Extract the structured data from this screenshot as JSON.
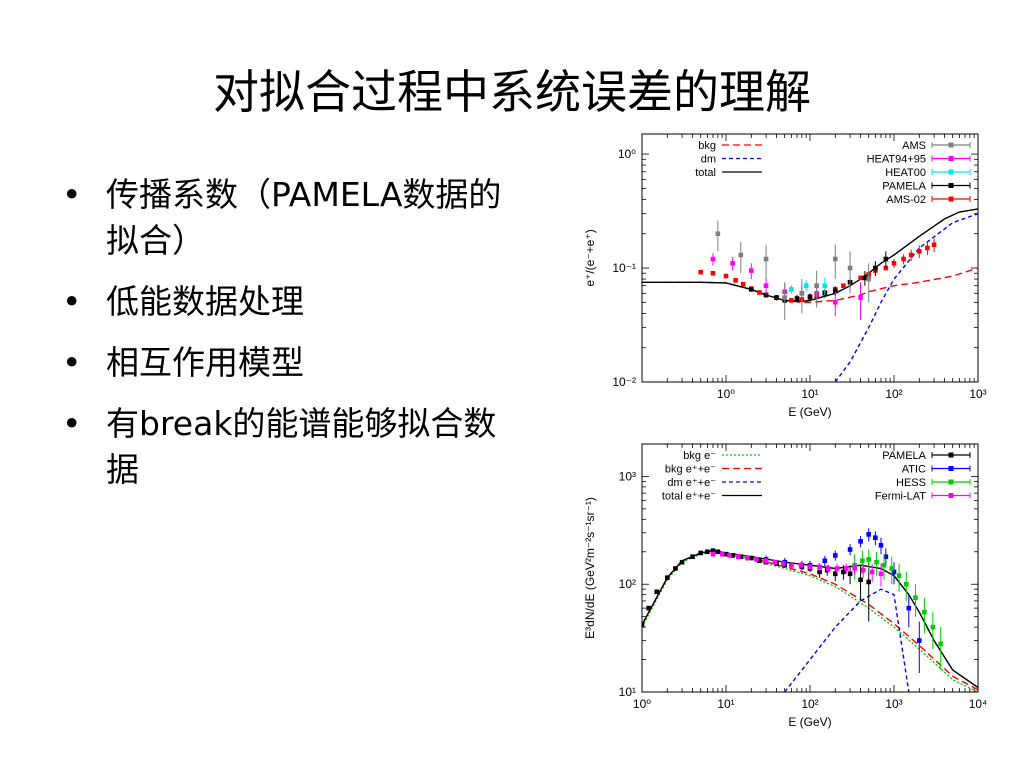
{
  "slide": {
    "title": "对拟合过程中系统误差的理解",
    "bullets": [
      "传播系数（PAMELA数据的拟合）",
      "低能数据处理",
      "相互作用模型",
      "有break的能谱能够拟合数据"
    ],
    "bullet_glyph": "•"
  },
  "chart_data": [
    {
      "type": "scatter",
      "xlabel": "E (GeV)",
      "ylabel": "e⁺/(e⁻+e⁺)",
      "xscale": "log",
      "yscale": "log",
      "xlim": [
        0.1,
        1000
      ],
      "ylim": [
        0.01,
        1.5
      ],
      "x_ticks": [
        {
          "v": 1,
          "label": "10⁰"
        },
        {
          "v": 10,
          "label": "10¹"
        },
        {
          "v": 100,
          "label": "10²"
        },
        {
          "v": 1000,
          "label": "10³"
        }
      ],
      "y_ticks": [
        {
          "v": 0.01,
          "label": "10⁻²"
        },
        {
          "v": 0.1,
          "label": "10⁻¹"
        },
        {
          "v": 1,
          "label": "10⁰"
        }
      ],
      "legend_left": [
        {
          "name": "bkg",
          "color": "#ff0000",
          "dash": "7,4"
        },
        {
          "name": "dm",
          "color": "#0000ff",
          "dash": "4,3"
        },
        {
          "name": "total",
          "color": "#000000",
          "dash": ""
        }
      ],
      "legend_right": [
        {
          "name": "AMS",
          "color": "#7f7f7f"
        },
        {
          "name": "HEAT94+95",
          "color": "#ff00ff"
        },
        {
          "name": "HEAT00",
          "color": "#00e5ee"
        },
        {
          "name": "PAMELA",
          "color": "#000000"
        },
        {
          "name": "AMS-02",
          "color": "#ff0000"
        }
      ],
      "lines": [
        {
          "name": "bkg",
          "color": "#ff0000",
          "dash": "7,4",
          "x": [
            0.1,
            0.5,
            1,
            2,
            3,
            5,
            8,
            10,
            20,
            40,
            50,
            100,
            200,
            500,
            1000
          ],
          "y": [
            0.075,
            0.075,
            0.074,
            0.065,
            0.058,
            0.052,
            0.05,
            0.05,
            0.052,
            0.058,
            0.062,
            0.07,
            0.075,
            0.085,
            0.1
          ]
        },
        {
          "name": "dm",
          "color": "#0000ff",
          "dash": "4,3",
          "x": [
            20,
            30,
            50,
            70,
            100,
            200,
            500,
            1000
          ],
          "y": [
            0.01,
            0.015,
            0.03,
            0.05,
            0.08,
            0.15,
            0.25,
            0.3
          ]
        },
        {
          "name": "total",
          "color": "#000000",
          "dash": "",
          "x": [
            0.1,
            0.5,
            1,
            2,
            3,
            5,
            8,
            10,
            20,
            30,
            40,
            50,
            70,
            100,
            200,
            400,
            600,
            1000
          ],
          "y": [
            0.075,
            0.075,
            0.074,
            0.065,
            0.058,
            0.052,
            0.051,
            0.052,
            0.06,
            0.07,
            0.08,
            0.09,
            0.11,
            0.13,
            0.19,
            0.27,
            0.31,
            0.33
          ]
        }
      ],
      "points": [
        {
          "name": "AMS-02",
          "color": "#ff0000",
          "x": [
            0.5,
            0.7,
            1,
            1.3,
            1.6,
            2,
            2.5,
            3,
            4,
            5,
            6,
            8,
            10,
            12,
            15,
            20,
            25,
            30,
            40,
            50,
            60,
            80,
            100,
            130,
            160,
            200,
            250,
            300
          ],
          "y": [
            0.092,
            0.09,
            0.085,
            0.078,
            0.072,
            0.066,
            0.061,
            0.058,
            0.055,
            0.053,
            0.052,
            0.053,
            0.055,
            0.057,
            0.061,
            0.065,
            0.07,
            0.075,
            0.082,
            0.088,
            0.095,
            0.1,
            0.11,
            0.12,
            0.13,
            0.14,
            0.15,
            0.16
          ],
          "err": [
            0,
            0,
            0,
            0,
            0,
            0,
            0,
            0,
            0,
            0,
            0,
            0,
            0,
            0,
            0,
            0,
            0,
            0,
            0,
            0,
            0,
            0,
            0.01,
            0.012,
            0.015,
            0.018,
            0.02,
            0.022
          ]
        },
        {
          "name": "PAMELA",
          "color": "#000000",
          "x": [
            2,
            3,
            4,
            5,
            7,
            10,
            15,
            20,
            30,
            45,
            60,
            80
          ],
          "y": [
            0.065,
            0.058,
            0.055,
            0.052,
            0.054,
            0.056,
            0.06,
            0.063,
            0.075,
            0.082,
            0.1,
            0.12
          ],
          "err": [
            0.003,
            0.003,
            0.003,
            0.003,
            0.004,
            0.004,
            0.005,
            0.006,
            0.008,
            0.012,
            0.015,
            0.02
          ]
        },
        {
          "name": "HEAT94+95",
          "color": "#ff00ff",
          "x": [
            0.7,
            1.2,
            2,
            3,
            5,
            8,
            12,
            20,
            40
          ],
          "y": [
            0.12,
            0.11,
            0.095,
            0.07,
            0.062,
            0.06,
            0.06,
            0.05,
            0.055
          ],
          "err": [
            0.015,
            0.015,
            0.015,
            0.012,
            0.01,
            0.01,
            0.012,
            0.012,
            0.02
          ]
        },
        {
          "name": "HEAT00",
          "color": "#00e5ee",
          "x": [
            6,
            9,
            15
          ],
          "y": [
            0.065,
            0.07,
            0.07
          ],
          "err": [
            0.006,
            0.008,
            0.012
          ]
        },
        {
          "name": "AMS",
          "color": "#7f7f7f",
          "x": [
            0.8,
            1.5,
            3,
            5,
            8,
            12,
            20,
            30,
            50
          ],
          "y": [
            0.2,
            0.13,
            0.12,
            0.055,
            0.06,
            0.07,
            0.12,
            0.1,
            0.08
          ],
          "err": [
            0.06,
            0.04,
            0.04,
            0.02,
            0.02,
            0.025,
            0.04,
            0.04,
            0.03
          ]
        }
      ]
    },
    {
      "type": "scatter",
      "xlabel": "E (GeV)",
      "ylabel": "E³dN/dE (GeV²m⁻²s⁻¹sr⁻¹)",
      "xscale": "log",
      "yscale": "log",
      "xlim": [
        1,
        10000
      ],
      "ylim": [
        10,
        2000
      ],
      "x_ticks": [
        {
          "v": 1,
          "label": "10⁰"
        },
        {
          "v": 10,
          "label": "10¹"
        },
        {
          "v": 100,
          "label": "10²"
        },
        {
          "v": 1000,
          "label": "10³"
        },
        {
          "v": 10000,
          "label": "10⁴"
        }
      ],
      "y_ticks": [
        {
          "v": 10,
          "label": "10¹"
        },
        {
          "v": 100,
          "label": "10²"
        },
        {
          "v": 1000,
          "label": "10³"
        }
      ],
      "legend_left": [
        {
          "name": "bkg e⁻",
          "color": "#00cc00",
          "dash": "2,2"
        },
        {
          "name": "bkg e⁺+e⁻",
          "color": "#ff0000",
          "dash": "7,4"
        },
        {
          "name": "dm e⁺+e⁻",
          "color": "#0000ff",
          "dash": "4,3"
        },
        {
          "name": "total e⁺+e⁻",
          "color": "#000000",
          "dash": ""
        }
      ],
      "legend_right": [
        {
          "name": "PAMELA",
          "color": "#000000"
        },
        {
          "name": "ATIC",
          "color": "#0000ff"
        },
        {
          "name": "HESS",
          "color": "#00cc00"
        },
        {
          "name": "Fermi-LAT",
          "color": "#ff00ff"
        }
      ],
      "lines": [
        {
          "name": "bkg e⁻",
          "color": "#00cc00",
          "dash": "2,2",
          "x": [
            1,
            2,
            3,
            5,
            7,
            10,
            20,
            50,
            100,
            200,
            500,
            1000,
            2000,
            5000,
            10000
          ],
          "y": [
            40,
            110,
            160,
            190,
            200,
            190,
            170,
            140,
            120,
            95,
            60,
            40,
            25,
            13,
            10
          ]
        },
        {
          "name": "bkg e⁺+e⁻",
          "color": "#ff0000",
          "dash": "7,4",
          "x": [
            1,
            2,
            3,
            5,
            7,
            10,
            20,
            50,
            100,
            200,
            500,
            1000,
            2000,
            5000,
            10000
          ],
          "y": [
            42,
            115,
            165,
            195,
            205,
            195,
            175,
            145,
            125,
            100,
            65,
            43,
            27,
            14,
            10.5
          ]
        },
        {
          "name": "dm e⁺+e⁻",
          "color": "#0000ff",
          "dash": "4,3",
          "x": [
            50,
            70,
            100,
            200,
            400,
            700,
            1000,
            1500
          ],
          "y": [
            10,
            14,
            20,
            40,
            70,
            90,
            80,
            10
          ]
        },
        {
          "name": "total e⁺+e⁻",
          "color": "#000000",
          "dash": "",
          "x": [
            1,
            2,
            3,
            5,
            7,
            10,
            20,
            50,
            100,
            200,
            400,
            700,
            1000,
            1500,
            2000,
            3000,
            5000,
            10000
          ],
          "y": [
            42,
            115,
            165,
            195,
            205,
            195,
            180,
            160,
            150,
            140,
            150,
            140,
            120,
            80,
            55,
            30,
            16,
            11
          ]
        }
      ],
      "points": [
        {
          "name": "PAMELA",
          "color": "#000000",
          "x": [
            1,
            1.2,
            1.5,
            2,
            2.5,
            3,
            4,
            5,
            6,
            7,
            8,
            10,
            12,
            15,
            20,
            25,
            30,
            40,
            50,
            60,
            80,
            100,
            130,
            160,
            200,
            250,
            300,
            400,
            500
          ],
          "y": [
            42,
            60,
            85,
            115,
            140,
            160,
            180,
            195,
            200,
            205,
            200,
            190,
            185,
            180,
            175,
            165,
            160,
            155,
            150,
            150,
            145,
            140,
            130,
            135,
            125,
            130,
            125,
            110,
            105
          ],
          "err": [
            2,
            2,
            3,
            3,
            3,
            4,
            4,
            4,
            5,
            5,
            5,
            5,
            5,
            5,
            5,
            6,
            6,
            6,
            8,
            8,
            10,
            10,
            15,
            15,
            18,
            20,
            25,
            40,
            60
          ]
        },
        {
          "name": "ATIC",
          "color": "#0000ff",
          "x": [
            30,
            50,
            80,
            100,
            150,
            200,
            300,
            400,
            500,
            600,
            700,
            800,
            1000,
            1500,
            2000
          ],
          "y": [
            170,
            160,
            150,
            150,
            165,
            185,
            210,
            250,
            290,
            270,
            230,
            180,
            130,
            60,
            30
          ],
          "err": [
            15,
            15,
            15,
            15,
            18,
            20,
            25,
            30,
            40,
            40,
            40,
            35,
            30,
            20,
            15
          ]
        },
        {
          "name": "HESS",
          "color": "#00cc00",
          "x": [
            340,
            420,
            500,
            620,
            760,
            940,
            1150,
            1400,
            1800,
            2300,
            2900,
            3600
          ],
          "y": [
            150,
            165,
            170,
            160,
            150,
            140,
            120,
            100,
            75,
            55,
            40,
            28
          ],
          "err": [
            40,
            40,
            40,
            40,
            40,
            40,
            35,
            30,
            25,
            20,
            15,
            12
          ]
        },
        {
          "name": "Fermi-LAT",
          "color": "#ff00ff",
          "x": [
            7,
            9,
            11,
            14,
            18,
            23,
            30,
            38,
            48,
            60,
            78,
            100,
            130,
            165,
            210,
            270,
            340,
            430,
            550,
            700
          ],
          "y": [
            190,
            190,
            185,
            180,
            175,
            170,
            165,
            160,
            155,
            150,
            150,
            145,
            145,
            140,
            140,
            140,
            140,
            135,
            130,
            125
          ],
          "err": [
            10,
            10,
            10,
            10,
            10,
            10,
            10,
            10,
            10,
            10,
            10,
            10,
            12,
            12,
            15,
            15,
            18,
            20,
            25,
            30
          ]
        }
      ]
    }
  ]
}
